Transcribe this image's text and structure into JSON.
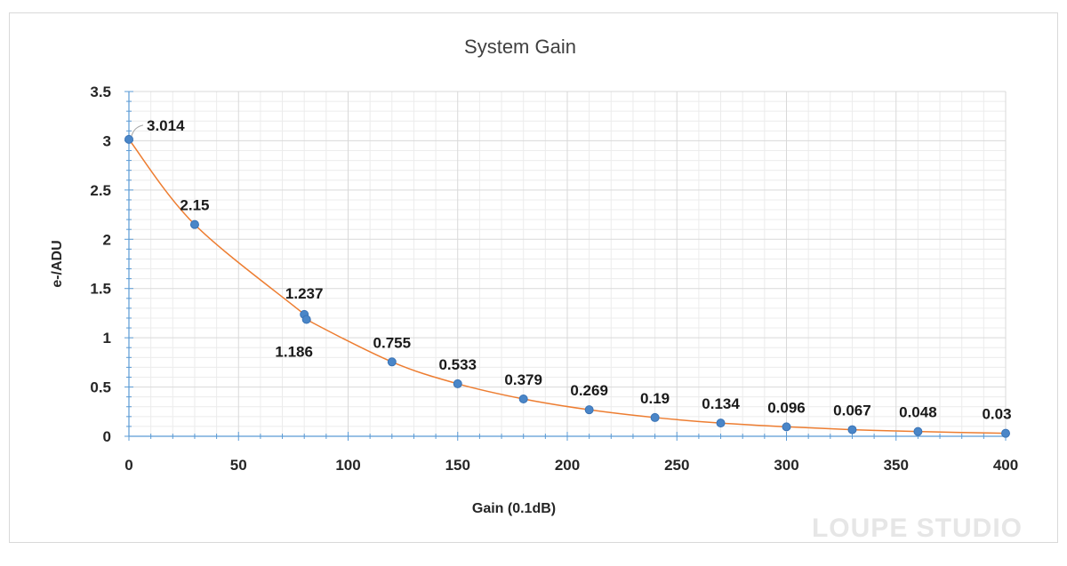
{
  "chart_data": {
    "type": "scatter",
    "title": "System Gain",
    "xlabel": "Gain (0.1dB)",
    "ylabel": "e-/ADU",
    "xlim": [
      0,
      400
    ],
    "ylim": [
      0,
      3.5
    ],
    "x_ticks": [
      0,
      50,
      100,
      150,
      200,
      250,
      300,
      350,
      400
    ],
    "y_ticks": [
      0,
      0.5,
      1,
      1.5,
      2,
      2.5,
      3,
      3.5
    ],
    "y_tick_labels": [
      "0",
      "0.5",
      "1",
      "1.5",
      "2",
      "2.5",
      "3",
      "3.5"
    ],
    "grid": true,
    "series": [
      {
        "name": "System Gain",
        "x": [
          0,
          30,
          80,
          81,
          120,
          150,
          180,
          210,
          240,
          270,
          300,
          330,
          360,
          400
        ],
        "y": [
          3.014,
          2.15,
          1.237,
          1.186,
          0.755,
          0.533,
          0.379,
          0.269,
          0.19,
          0.134,
          0.096,
          0.067,
          0.048,
          0.03
        ],
        "labels": [
          "3.014",
          "2.15",
          "1.237",
          "1.186",
          "0.755",
          "0.533",
          "0.379",
          "0.269",
          "0.19",
          "0.134",
          "0.096",
          "0.067",
          "0.048",
          "0.03"
        ],
        "marker_color": "#4a86c8",
        "line_color": "#ed7d31"
      }
    ]
  },
  "watermark": "LOUPE STUDIO",
  "colors": {
    "grid": "#d9d9d9",
    "minor_grid": "#ececec",
    "axis": "#5b9bd5"
  }
}
